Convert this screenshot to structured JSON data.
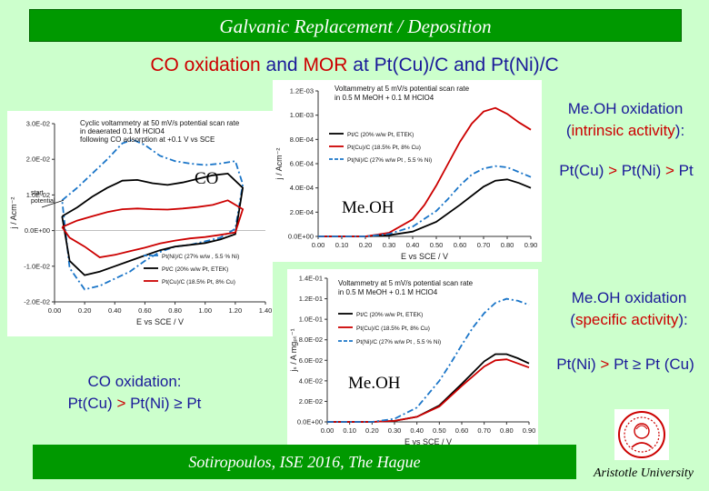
{
  "slide": {
    "title": "Galvanic Replacement / Deposition",
    "subtitle_parts": [
      "CO oxidation",
      " and ",
      "MOR",
      " at Pt(Cu)/C and Pt(Ni)/C"
    ],
    "footer": "Sotiropoulos, ISE 2016, The Hague",
    "university": "Aristotle University",
    "colors": {
      "background": "#ccffcc",
      "title_bar": "#009900",
      "red": "#cc0000",
      "blue_text": "#1a1a99",
      "series_black": "#000000",
      "series_red": "#cc0000",
      "series_blue": "#1a75c8"
    }
  },
  "annotations": {
    "intrinsic_title_line1": "Me.OH oxidation",
    "intrinsic_title_line2": "(intrinsic activity):",
    "intrinsic_order_parts": [
      "Pt(Cu) ",
      ">",
      " Pt(Ni) ",
      ">",
      " Pt"
    ],
    "specific_title_line1": "Me.OH oxidation",
    "specific_title_line2": "(specific activity):",
    "specific_order_parts": [
      "Pt(Ni) ",
      ">",
      " Pt ",
      "≥",
      " Pt (Cu)"
    ],
    "co_title": "CO oxidation:",
    "co_order_parts": [
      "Pt(Cu) ",
      ">",
      " Pt(Ni) ",
      "≥",
      " Pt"
    ],
    "co_label": "CO",
    "meoh_label_1": "Me.OH",
    "meoh_label_2": "Me.OH"
  },
  "chart_data": [
    {
      "type": "line",
      "description_text": [
        "Cyclic voltammetry at 50 mV/s potential scan rate",
        "in deaerated 0.1 M HClO4",
        "following CO adsorption at +0.1 V vs SCE"
      ],
      "start_label": [
        "start",
        "potential"
      ],
      "xlabel": "E vs SCE / V",
      "ylabel": "j / Acm⁻²",
      "xlim": [
        0.0,
        1.4
      ],
      "ylim": [
        -0.02,
        0.03
      ],
      "xticks": [
        "0.00",
        "0.20",
        "0.40",
        "0.60",
        "0.80",
        "1.00",
        "1.20",
        "1.40"
      ],
      "yticks": [
        "3.0E-02",
        "2.0E-02",
        "1.0E-02",
        "0.0E+00",
        "-1.0E-02",
        "-2.0E-02"
      ],
      "legend": [
        "Pt(Ni)/C (27% w/w , 5.5 % Ni)",
        "Pt/C (20% w/w Pt, ETEK)",
        "Pt(Cu)/C (18.5% Pt, 8% Cu)"
      ],
      "series": [
        {
          "name": "Pt(Ni)/C (27% w/w , 5.5 % Ni)",
          "color": "#1a75c8",
          "style": "dashed",
          "x": [
            0.05,
            0.15,
            0.25,
            0.35,
            0.45,
            0.52,
            0.6,
            0.7,
            0.8,
            0.9,
            1.0,
            1.1,
            1.2,
            1.25,
            1.2,
            1.1,
            1.0,
            0.9,
            0.8,
            0.7,
            0.6,
            0.5,
            0.4,
            0.3,
            0.2,
            0.1,
            0.05
          ],
          "y": [
            0.0085,
            0.012,
            0.016,
            0.02,
            0.0245,
            0.0255,
            0.024,
            0.021,
            0.0195,
            0.0188,
            0.0184,
            0.0188,
            0.0195,
            0.013,
            0.0005,
            -0.002,
            -0.003,
            -0.004,
            -0.0045,
            -0.006,
            -0.0085,
            -0.0115,
            -0.0135,
            -0.0155,
            -0.0165,
            -0.0105,
            0.0085
          ]
        },
        {
          "name": "Pt/C (20% w/w Pt, ETEK)",
          "color": "#000000",
          "style": "solid",
          "x": [
            0.05,
            0.15,
            0.25,
            0.35,
            0.45,
            0.55,
            0.65,
            0.75,
            0.85,
            0.95,
            1.05,
            1.15,
            1.25,
            1.2,
            1.1,
            1.0,
            0.9,
            0.8,
            0.7,
            0.6,
            0.5,
            0.4,
            0.3,
            0.2,
            0.1,
            0.05
          ],
          "y": [
            0.004,
            0.0065,
            0.0095,
            0.012,
            0.014,
            0.0142,
            0.0133,
            0.0128,
            0.0135,
            0.0145,
            0.0155,
            0.016,
            0.012,
            -0.001,
            -0.0025,
            -0.0035,
            -0.004,
            -0.0045,
            -0.0055,
            -0.007,
            -0.0085,
            -0.01,
            -0.0115,
            -0.0125,
            -0.0085,
            0.004
          ]
        },
        {
          "name": "Pt(Cu)/C (18.5% Pt, 8% Cu)",
          "color": "#cc0000",
          "style": "solid",
          "x": [
            0.05,
            0.15,
            0.25,
            0.35,
            0.45,
            0.55,
            0.65,
            0.75,
            0.85,
            0.95,
            1.05,
            1.15,
            1.25,
            1.2,
            1.1,
            1.0,
            0.9,
            0.8,
            0.7,
            0.6,
            0.5,
            0.4,
            0.3,
            0.2,
            0.1,
            0.05
          ],
          "y": [
            0.001,
            0.0028,
            0.004,
            0.0052,
            0.006,
            0.0062,
            0.006,
            0.0059,
            0.0062,
            0.0066,
            0.0072,
            0.0085,
            0.006,
            -0.0005,
            -0.0012,
            -0.0018,
            -0.0022,
            -0.0028,
            -0.0036,
            -0.0048,
            -0.0058,
            -0.0068,
            -0.0075,
            -0.0045,
            -0.002,
            0.001
          ]
        }
      ]
    },
    {
      "type": "line",
      "description_text": [
        "Voltammetry at 5 mV/s potential scan rate",
        "in 0.5 M MeOH + 0.1 M HClO4"
      ],
      "xlabel": "E vs SCE / V",
      "ylabel": "j / Acm⁻²",
      "xlim": [
        0.0,
        0.9
      ],
      "ylim": [
        0.0,
        0.0012
      ],
      "xticks": [
        "0.00",
        "0.10",
        "0.20",
        "0.30",
        "0.40",
        "0.50",
        "0.60",
        "0.70",
        "0.80",
        "0.90"
      ],
      "yticks": [
        "1.2E-03",
        "1.0E-03",
        "8.0E-04",
        "6.0E-04",
        "4.0E-04",
        "2.0E-04",
        "0.0E+00"
      ],
      "legend": [
        "Pt/C (20% w/w Pt, ETEK)",
        "Pt(Cu)/C (18.5% Pt, 8% Cu)",
        "Pt(Ni)/C (27% w/w Pt , 5.5 % Ni)"
      ],
      "series": [
        {
          "name": "Pt/C (20% w/w Pt, ETEK)",
          "color": "#000000",
          "style": "solid",
          "x": [
            0.0,
            0.2,
            0.3,
            0.4,
            0.5,
            0.6,
            0.7,
            0.75,
            0.8,
            0.85,
            0.9
          ],
          "y": [
            0.0,
            0.0,
            1e-05,
            4e-05,
            0.00012,
            0.00026,
            0.00041,
            0.00046,
            0.00047,
            0.00044,
            0.0004
          ]
        },
        {
          "name": "Pt(Cu)/C (18.5% Pt, 8% Cu)",
          "color": "#cc0000",
          "style": "solid",
          "x": [
            0.0,
            0.2,
            0.3,
            0.4,
            0.45,
            0.5,
            0.55,
            0.6,
            0.65,
            0.7,
            0.75,
            0.8,
            0.85,
            0.9
          ],
          "y": [
            0.0,
            0.0,
            3e-05,
            0.00014,
            0.00026,
            0.00042,
            0.0006,
            0.00078,
            0.00093,
            0.00103,
            0.00106,
            0.00101,
            0.00094,
            0.00088
          ]
        },
        {
          "name": "Pt(Ni)/C (27% w/w Pt , 5.5 % Ni)",
          "color": "#1a75c8",
          "style": "dashed",
          "x": [
            0.0,
            0.2,
            0.3,
            0.4,
            0.5,
            0.55,
            0.6,
            0.65,
            0.7,
            0.75,
            0.8,
            0.85,
            0.9
          ],
          "y": [
            0.0,
            0.0,
            2e-05,
            8e-05,
            0.00021,
            0.00031,
            0.00042,
            0.00051,
            0.00056,
            0.00058,
            0.00057,
            0.00053,
            0.00049
          ]
        }
      ]
    },
    {
      "type": "line",
      "description_text": [
        "Voltammetry at 5 mV/s potential scan rate",
        "in 0.5 M MeOH + 0.1 M HClO4"
      ],
      "xlabel": "E vs SCE / V",
      "ylabel": "jₛ / A mgₚₜ⁻¹",
      "xlim": [
        0.0,
        0.9
      ],
      "ylim": [
        0.0,
        0.14
      ],
      "xticks": [
        "0.00",
        "0.10",
        "0.20",
        "0.30",
        "0.40",
        "0.50",
        "0.60",
        "0.70",
        "0.80",
        "0.90"
      ],
      "yticks": [
        "1.4E-01",
        "1.2E-01",
        "1.0E-01",
        "8.0E-02",
        "6.0E-02",
        "4.0E-02",
        "2.0E-02",
        "0.0E+00"
      ],
      "legend": [
        "Pt/C (20% w/w Pt, ETEK)",
        "Pt(Cu)/C (18.5% Pt, 8% Cu)",
        "Pt(Ni)/C (27% w/w Pt , 5.5 % Ni)"
      ],
      "series": [
        {
          "name": "Pt/C (20% w/w Pt, ETEK)",
          "color": "#000000",
          "style": "solid",
          "x": [
            0.0,
            0.2,
            0.3,
            0.4,
            0.5,
            0.6,
            0.7,
            0.75,
            0.8,
            0.85,
            0.9
          ],
          "y": [
            0.0,
            0.0,
            0.001,
            0.005,
            0.016,
            0.037,
            0.059,
            0.066,
            0.066,
            0.062,
            0.057
          ]
        },
        {
          "name": "Pt(Cu)/C (18.5% Pt, 8% Cu)",
          "color": "#cc0000",
          "style": "solid",
          "x": [
            0.0,
            0.2,
            0.3,
            0.4,
            0.5,
            0.6,
            0.7,
            0.75,
            0.8,
            0.85,
            0.9
          ],
          "y": [
            0.0,
            0.0,
            0.001,
            0.005,
            0.015,
            0.035,
            0.054,
            0.06,
            0.061,
            0.057,
            0.053
          ]
        },
        {
          "name": "Pt(Ni)/C (27% w/w Pt , 5.5 % Ni)",
          "color": "#1a75c8",
          "style": "dashed",
          "x": [
            0.0,
            0.2,
            0.3,
            0.4,
            0.5,
            0.55,
            0.6,
            0.65,
            0.7,
            0.75,
            0.8,
            0.85,
            0.9
          ],
          "y": [
            0.0,
            0.0,
            0.003,
            0.014,
            0.04,
            0.057,
            0.075,
            0.092,
            0.106,
            0.116,
            0.12,
            0.118,
            0.114
          ]
        }
      ]
    }
  ]
}
